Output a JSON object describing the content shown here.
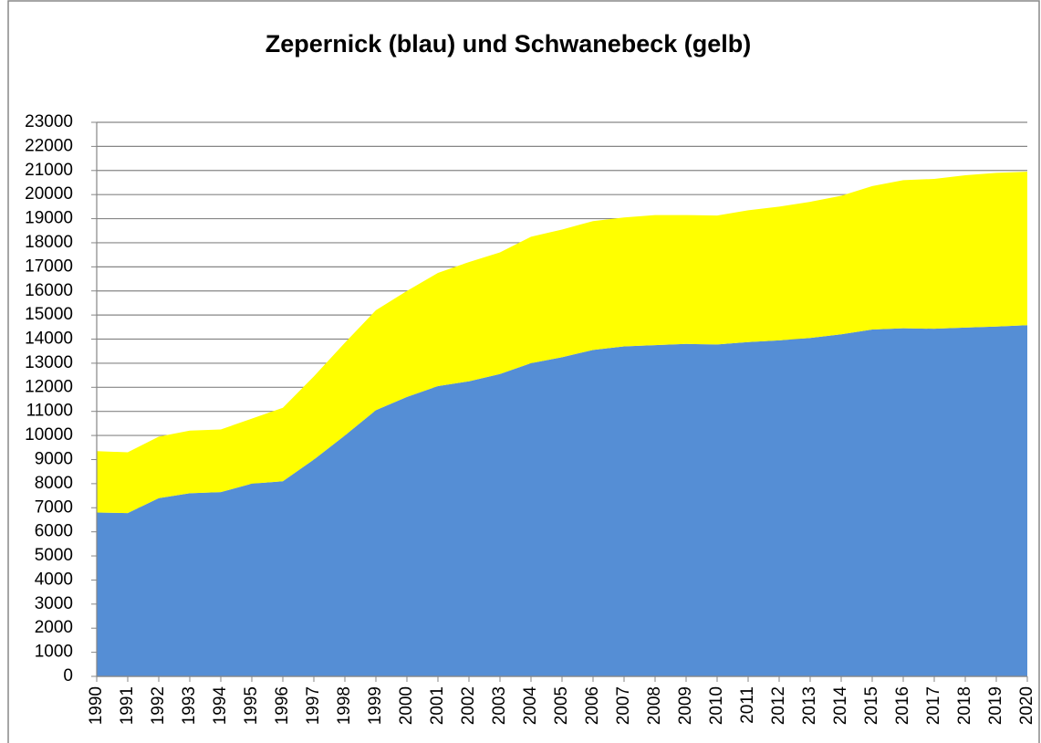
{
  "chart_data": {
    "type": "stacked_area",
    "title": "Zepernick (blau) und Schwanebeck (gelb)",
    "categories": [
      "1990",
      "1991",
      "1992",
      "1993",
      "1994",
      "1995",
      "1996",
      "1997",
      "1998",
      "1999",
      "2000",
      "2001",
      "2002",
      "2003",
      "2004",
      "2005",
      "2006",
      "2007",
      "2008",
      "2009",
      "2010",
      "2011",
      "2012",
      "2013",
      "2014",
      "2015",
      "2016",
      "2017",
      "2018",
      "2019",
      "2020"
    ],
    "series": [
      {
        "name": "Zepernick",
        "color": "#558ed5",
        "values": [
          6800,
          6780,
          7400,
          7600,
          7650,
          8000,
          8100,
          9000,
          10000,
          11050,
          11600,
          12050,
          12250,
          12550,
          13000,
          13250,
          13550,
          13700,
          13750,
          13800,
          13780,
          13880,
          13950,
          14050,
          14200,
          14400,
          14450,
          14430,
          14480,
          14520,
          14580
        ]
      },
      {
        "name": "Schwanebeck",
        "color": "#ffff00",
        "values": [
          2550,
          2520,
          2550,
          2600,
          2600,
          2700,
          3050,
          3450,
          3850,
          4150,
          4400,
          4700,
          4950,
          5050,
          5250,
          5300,
          5350,
          5350,
          5400,
          5350,
          5350,
          5470,
          5550,
          5650,
          5750,
          5950,
          6150,
          6220,
          6320,
          6380,
          6370
        ]
      }
    ],
    "ylim": [
      0,
      23000
    ],
    "yticks": [
      0,
      1000,
      2000,
      3000,
      4000,
      5000,
      6000,
      7000,
      8000,
      9000,
      10000,
      11000,
      12000,
      13000,
      14000,
      15000,
      16000,
      17000,
      18000,
      19000,
      20000,
      21000,
      22000,
      23000
    ],
    "grid": true
  }
}
